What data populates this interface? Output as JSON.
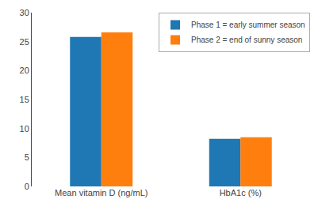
{
  "chart_data": {
    "type": "bar",
    "categories": [
      "Mean vitamin D (ng/mL)",
      "HbA1c (%)"
    ],
    "series": [
      {
        "name": "Phase 1 = early summer season",
        "values": [
          25.8,
          8.2
        ]
      },
      {
        "name": "Phase 2 = end of sunny season",
        "values": [
          26.6,
          8.5
        ]
      }
    ],
    "ylim": [
      0,
      30
    ],
    "yticks": [
      0,
      5,
      10,
      15,
      20,
      25,
      30
    ],
    "grid": false,
    "legend": "upper right"
  }
}
